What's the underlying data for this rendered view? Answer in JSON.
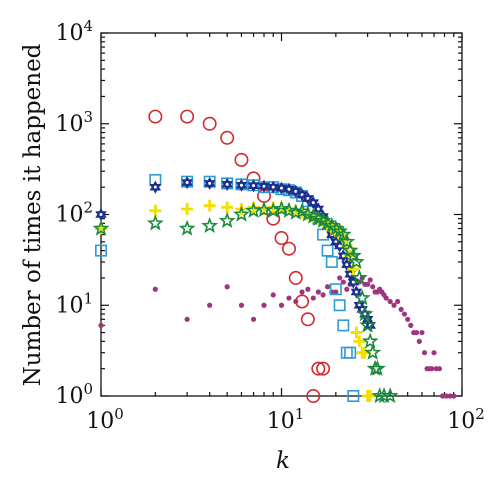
{
  "chart_data": {
    "type": "scatter",
    "xscale": "log",
    "yscale": "log",
    "xlim": [
      1,
      100
    ],
    "ylim": [
      1,
      10000
    ],
    "grid": false,
    "legend": "none",
    "xlabel": "k",
    "ylabel": "Number of times it happened",
    "xticks": [
      {
        "value": 1,
        "base": "10",
        "exp": "0"
      },
      {
        "value": 10,
        "base": "10",
        "exp": "1"
      },
      {
        "value": 100,
        "base": "10",
        "exp": "2"
      }
    ],
    "yticks": [
      {
        "value": 1,
        "base": "10",
        "exp": "0"
      },
      {
        "value": 10,
        "base": "10",
        "exp": "1"
      },
      {
        "value": 100,
        "base": "10",
        "exp": "2"
      },
      {
        "value": 1000,
        "base": "10",
        "exp": "3"
      },
      {
        "value": 10000,
        "base": "10",
        "exp": "4"
      }
    ],
    "series": [
      {
        "marker": "dot",
        "color": "#a0357f",
        "points": [
          [
            1,
            6
          ],
          [
            2,
            15
          ],
          [
            3,
            7
          ],
          [
            4,
            10
          ],
          [
            5,
            16
          ],
          [
            6,
            10
          ],
          [
            7,
            7
          ],
          [
            8,
            10
          ],
          [
            9,
            13
          ],
          [
            10,
            10
          ],
          [
            11,
            12
          ],
          [
            12,
            11
          ],
          [
            13,
            14
          ],
          [
            14,
            15
          ],
          [
            15,
            12
          ],
          [
            16,
            14
          ],
          [
            17,
            13
          ],
          [
            18,
            16
          ],
          [
            19,
            14
          ],
          [
            20,
            14
          ],
          [
            21,
            20
          ],
          [
            22,
            18
          ],
          [
            23,
            15
          ],
          [
            24,
            17
          ],
          [
            25,
            20
          ],
          [
            26,
            18
          ],
          [
            27,
            18
          ],
          [
            28,
            20
          ],
          [
            29,
            17
          ],
          [
            30,
            17
          ],
          [
            31,
            19
          ],
          [
            32,
            16
          ],
          [
            33,
            14
          ],
          [
            34,
            14
          ],
          [
            35,
            15
          ],
          [
            36,
            14
          ],
          [
            37,
            13
          ],
          [
            38,
            12
          ],
          [
            40,
            11
          ],
          [
            42,
            10
          ],
          [
            44,
            11
          ],
          [
            46,
            9
          ],
          [
            48,
            8
          ],
          [
            50,
            7
          ],
          [
            52,
            6
          ],
          [
            54,
            5
          ],
          [
            56,
            5
          ],
          [
            58,
            4
          ],
          [
            60,
            5
          ],
          [
            62,
            3
          ],
          [
            64,
            2
          ],
          [
            66,
            2
          ],
          [
            68,
            2
          ],
          [
            70,
            3
          ],
          [
            72,
            2
          ],
          [
            75,
            2
          ],
          [
            78,
            1
          ],
          [
            82,
            1
          ],
          [
            86,
            1
          ],
          [
            90,
            1
          ]
        ]
      },
      {
        "marker": "circle",
        "color": "#d42a2a",
        "points": [
          [
            2,
            1200
          ],
          [
            3,
            1200
          ],
          [
            4,
            1000
          ],
          [
            5,
            700
          ],
          [
            6,
            400
          ],
          [
            7,
            250
          ],
          [
            8,
            160
          ],
          [
            9,
            90
          ],
          [
            10,
            55
          ],
          [
            11,
            42
          ],
          [
            12,
            20
          ],
          [
            13,
            11
          ],
          [
            14,
            7
          ],
          [
            15,
            1
          ],
          [
            16,
            2
          ],
          [
            17,
            2
          ]
        ]
      },
      {
        "marker": "square",
        "color": "#2e9ad6",
        "points": [
          [
            1,
            40
          ],
          [
            2,
            240
          ],
          [
            3,
            230
          ],
          [
            4,
            230
          ],
          [
            5,
            220
          ],
          [
            6,
            215
          ],
          [
            7,
            210
          ],
          [
            8,
            200
          ],
          [
            9,
            200
          ],
          [
            10,
            190
          ],
          [
            11,
            185
          ],
          [
            12,
            175
          ],
          [
            13,
            160
          ],
          [
            14,
            140
          ],
          [
            15,
            110
          ],
          [
            16,
            90
          ],
          [
            17,
            60
          ],
          [
            18,
            40
          ],
          [
            19,
            30
          ],
          [
            20,
            15
          ],
          [
            21,
            10
          ],
          [
            22,
            6
          ],
          [
            23,
            3
          ],
          [
            24,
            3
          ],
          [
            25,
            1
          ]
        ]
      },
      {
        "marker": "star6",
        "color": "#1c2f8f",
        "points": [
          [
            1,
            100
          ],
          [
            2,
            200
          ],
          [
            3,
            225
          ],
          [
            4,
            220
          ],
          [
            5,
            215
          ],
          [
            6,
            210
          ],
          [
            7,
            208
          ],
          [
            8,
            205
          ],
          [
            9,
            200
          ],
          [
            10,
            195
          ],
          [
            11,
            190
          ],
          [
            12,
            180
          ],
          [
            13,
            165
          ],
          [
            14,
            150
          ],
          [
            15,
            135
          ],
          [
            16,
            115
          ],
          [
            17,
            95
          ],
          [
            18,
            75
          ],
          [
            19,
            60
          ],
          [
            20,
            50
          ],
          [
            21,
            45
          ],
          [
            22,
            35
          ],
          [
            23,
            28
          ],
          [
            24,
            22
          ],
          [
            25,
            18
          ],
          [
            26,
            14
          ],
          [
            27,
            10
          ],
          [
            28,
            9
          ],
          [
            29,
            8
          ],
          [
            30,
            7
          ],
          [
            31,
            6
          ]
        ]
      },
      {
        "marker": "plus",
        "color": "#f0e000",
        "points": [
          [
            1,
            70
          ],
          [
            2,
            110
          ],
          [
            3,
            115
          ],
          [
            4,
            125
          ],
          [
            5,
            120
          ],
          [
            6,
            115
          ],
          [
            7,
            120
          ],
          [
            8,
            115
          ],
          [
            9,
            120
          ],
          [
            10,
            118
          ],
          [
            11,
            115
          ],
          [
            12,
            110
          ],
          [
            13,
            105
          ],
          [
            14,
            100
          ],
          [
            15,
            95
          ],
          [
            16,
            90
          ],
          [
            17,
            85
          ],
          [
            18,
            75
          ],
          [
            19,
            70
          ],
          [
            20,
            65
          ],
          [
            21,
            60
          ],
          [
            22,
            55
          ],
          [
            23,
            45
          ],
          [
            24,
            35
          ],
          [
            25,
            25
          ],
          [
            26,
            5
          ],
          [
            27,
            4
          ],
          [
            28,
            3
          ],
          [
            29,
            3
          ],
          [
            30,
            1
          ],
          [
            31,
            1
          ]
        ]
      },
      {
        "marker": "star5",
        "color": "#1a8a3c",
        "points": [
          [
            1,
            70
          ],
          [
            2,
            80
          ],
          [
            3,
            70
          ],
          [
            4,
            75
          ],
          [
            5,
            85
          ],
          [
            6,
            100
          ],
          [
            7,
            110
          ],
          [
            8,
            112
          ],
          [
            9,
            110
          ],
          [
            10,
            115
          ],
          [
            11,
            110
          ],
          [
            12,
            105
          ],
          [
            13,
            108
          ],
          [
            14,
            100
          ],
          [
            15,
            95
          ],
          [
            16,
            90
          ],
          [
            17,
            85
          ],
          [
            18,
            80
          ],
          [
            19,
            75
          ],
          [
            20,
            70
          ],
          [
            21,
            65
          ],
          [
            22,
            60
          ],
          [
            23,
            50
          ],
          [
            24,
            40
          ],
          [
            25,
            35
          ],
          [
            26,
            30
          ],
          [
            27,
            20
          ],
          [
            28,
            12
          ],
          [
            29,
            8
          ],
          [
            30,
            6
          ],
          [
            31,
            4
          ],
          [
            32,
            3
          ],
          [
            33,
            2
          ],
          [
            34,
            2
          ],
          [
            35,
            1
          ],
          [
            37,
            1
          ],
          [
            40,
            1
          ]
        ]
      }
    ]
  }
}
